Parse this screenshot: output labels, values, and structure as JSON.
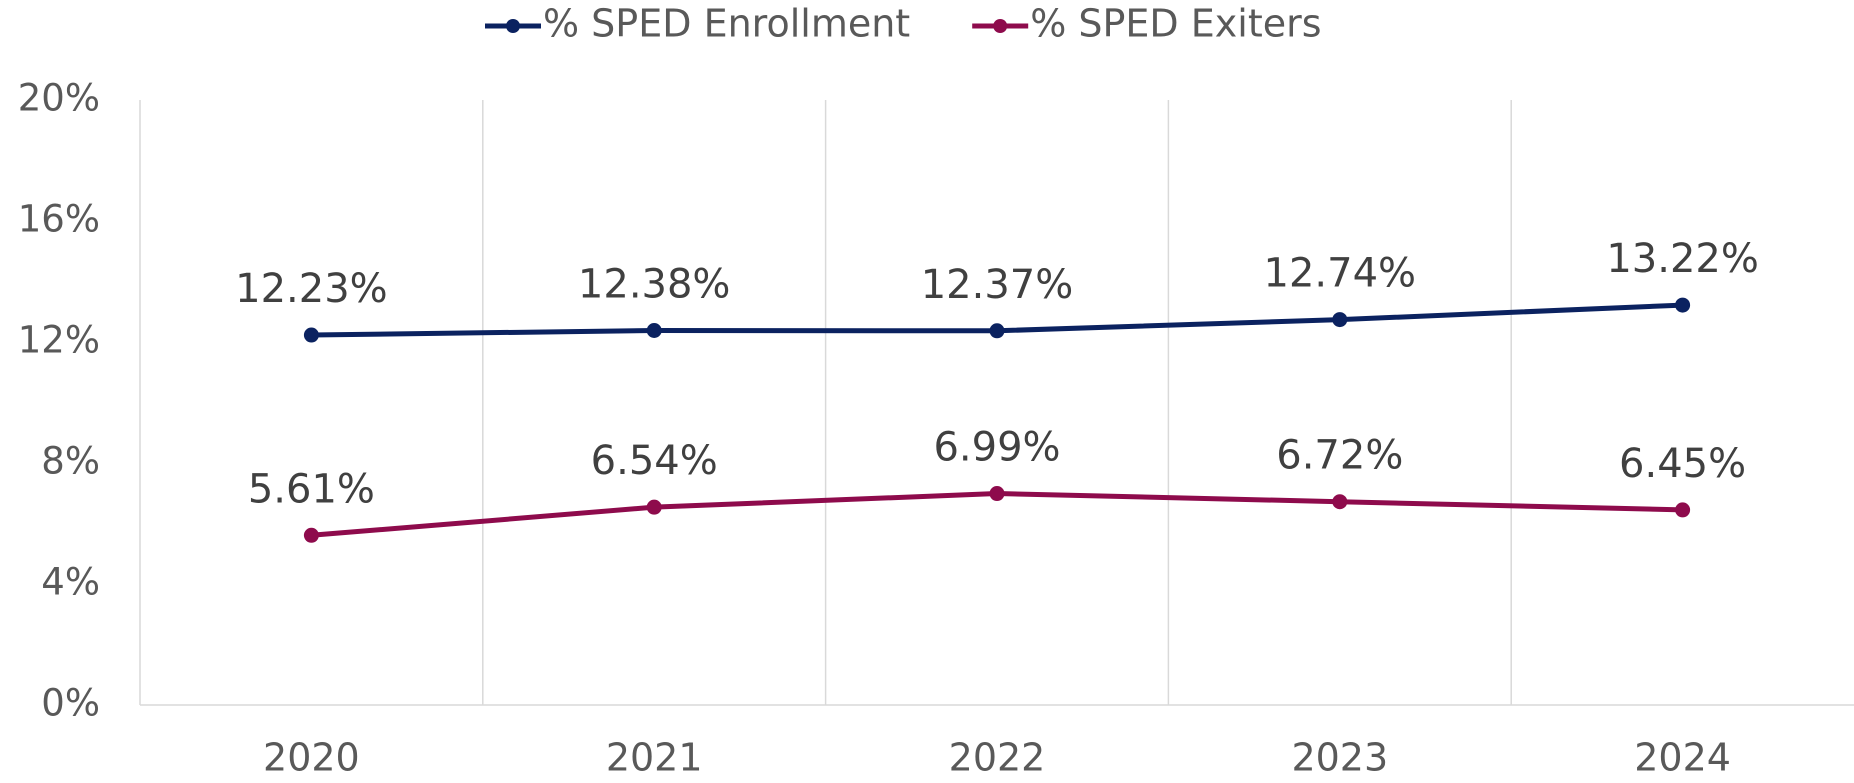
{
  "chart_data": {
    "type": "line",
    "categories": [
      "2020",
      "2021",
      "2022",
      "2023",
      "2024"
    ],
    "series": [
      {
        "name": "% SPED Enrollment",
        "color": "#0b2260",
        "values": [
          12.23,
          12.38,
          12.37,
          12.74,
          13.22
        ],
        "value_labels": [
          "12.23%",
          "12.38%",
          "12.37%",
          "12.74%",
          "13.22%"
        ]
      },
      {
        "name": "% SPED Exiters",
        "color": "#8e0b4c",
        "values": [
          5.61,
          6.54,
          6.99,
          6.72,
          6.45
        ],
        "value_labels": [
          "5.61%",
          "6.54%",
          "6.99%",
          "6.72%",
          "6.45%"
        ]
      }
    ],
    "ylim": [
      0,
      20
    ],
    "yticks": [
      {
        "value": 0,
        "label": "0%"
      },
      {
        "value": 4,
        "label": "4%"
      },
      {
        "value": 8,
        "label": "8%"
      },
      {
        "value": 12,
        "label": "12%"
      },
      {
        "value": 16,
        "label": "16%"
      },
      {
        "value": 20,
        "label": "20%"
      }
    ],
    "legend": "top"
  }
}
